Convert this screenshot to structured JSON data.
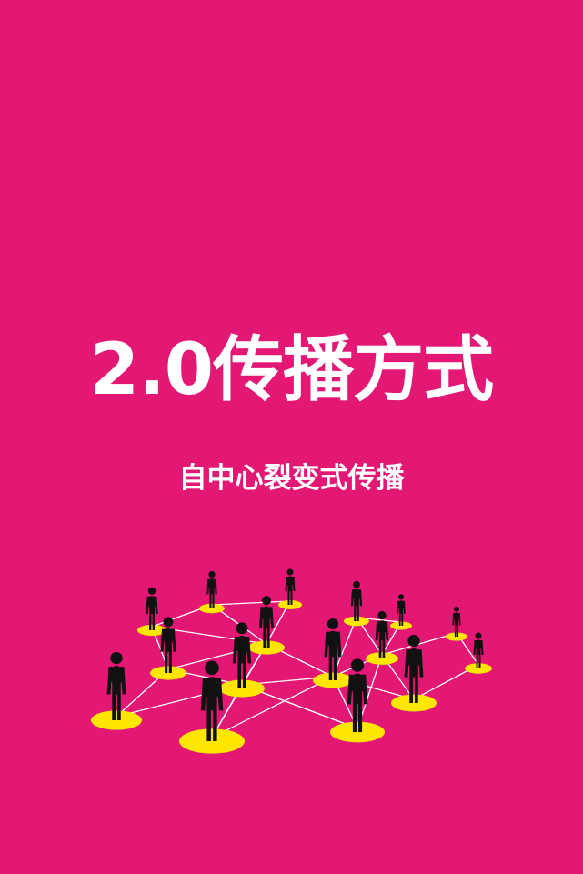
{
  "title": "2.0传播方式",
  "subtitle": "自中心裂变式传播",
  "colors": {
    "background": "#e31774",
    "text": "#ffffff",
    "disc": "#ffe600",
    "figure": "#111111",
    "link": "#ffffff"
  },
  "illustration": {
    "icon": "people-network-illustration"
  }
}
